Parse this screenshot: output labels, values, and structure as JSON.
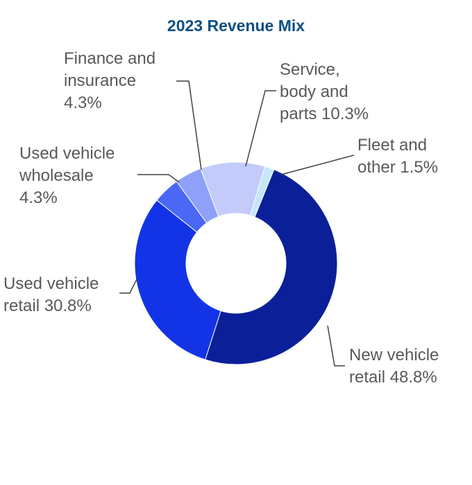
{
  "chart_data": {
    "type": "pie",
    "variant": "donut",
    "title": "2023 Revenue Mix",
    "slices": [
      {
        "key": "new_vehicle_retail",
        "label_lines": [
          "New vehicle",
          "retail 48.8%"
        ],
        "value": 48.8,
        "color": "#0b1f99"
      },
      {
        "key": "used_vehicle_retail",
        "label_lines": [
          "Used vehicle",
          "retail 30.8%"
        ],
        "value": 30.8,
        "color": "#1234e6"
      },
      {
        "key": "used_vehicle_wholesale",
        "label_lines": [
          "Used vehicle",
          "wholesale",
          "4.3%"
        ],
        "value": 4.3,
        "color": "#4a68f5"
      },
      {
        "key": "finance_and_insurance",
        "label_lines": [
          "Finance and",
          "insurance",
          "4.3%"
        ],
        "value": 4.3,
        "color": "#8fa0f8"
      },
      {
        "key": "service_body_and_parts",
        "label_lines": [
          "Service,",
          "body and",
          "parts 10.3%"
        ],
        "value": 10.3,
        "color": "#c3cbfb"
      },
      {
        "key": "fleet_and_other",
        "label_lines": [
          "Fleet and",
          "other 1.5%"
        ],
        "value": 1.5,
        "color": "#c6e6fb"
      }
    ],
    "legend": "none",
    "label_color": "#595959",
    "leader_color": "#404040",
    "title_color": "#0b4f82"
  }
}
